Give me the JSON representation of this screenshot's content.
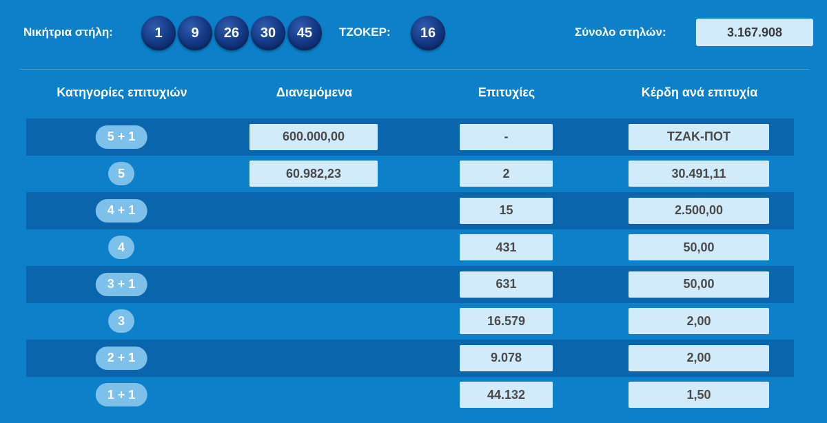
{
  "header": {
    "winning_label": "Νικήτρια στήλη:",
    "numbers": [
      "1",
      "9",
      "26",
      "30",
      "45"
    ],
    "joker_label": "ΤΖΟΚΕΡ:",
    "joker_number": "16",
    "total_label": "Σύνολο στηλών:",
    "total_value": "3.167.908"
  },
  "columns": {
    "categories": "Κατηγορίες επιτυχιών",
    "distributed": "Διανεμόμενα",
    "winners": "Επιτυχίες",
    "prize": "Κέρδη ανά επιτυχία"
  },
  "rows": [
    {
      "category": "5 + 1",
      "distributed": "600.000,00",
      "winners": "-",
      "prize": "ΤΖΑΚ-ΠΟΤ"
    },
    {
      "category": "5",
      "distributed": "60.982,23",
      "winners": "2",
      "prize": "30.491,11"
    },
    {
      "category": "4 + 1",
      "distributed": "",
      "winners": "15",
      "prize": "2.500,00"
    },
    {
      "category": "4",
      "distributed": "",
      "winners": "431",
      "prize": "50,00"
    },
    {
      "category": "3 + 1",
      "distributed": "",
      "winners": "631",
      "prize": "50,00"
    },
    {
      "category": "3",
      "distributed": "",
      "winners": "16.579",
      "prize": "2,00"
    },
    {
      "category": "2 + 1",
      "distributed": "",
      "winners": "9.078",
      "prize": "2,00"
    },
    {
      "category": "1 + 1",
      "distributed": "",
      "winners": "44.132",
      "prize": "1,50"
    }
  ]
}
